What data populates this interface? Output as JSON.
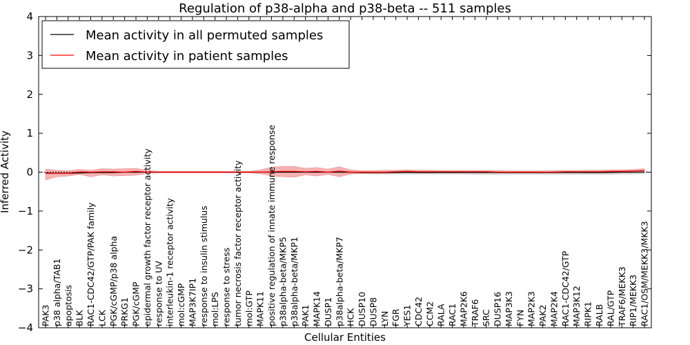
{
  "chart_data": {
    "type": "line",
    "title": "Regulation of p38-alpha and p38-beta -- 511 samples",
    "xlabel": "Cellular Entities",
    "ylabel": "Inferred Activity",
    "ylim": [
      -4,
      4
    ],
    "yticks": [
      -4,
      -3,
      -2,
      -1,
      0,
      1,
      2,
      3,
      4
    ],
    "ytick_labels": [
      "−4",
      "−3",
      "−2",
      "−1",
      "0",
      "1",
      "2",
      "3",
      "4"
    ],
    "legend_position": "top-left",
    "categories": [
      "PAK3",
      "p38 alpha/TAB1",
      "apoptosis",
      "BLK",
      "RAC1-CDC42/GTP/PAK family",
      "LCK",
      "PGK/cGMP/p38 alpha",
      "PRKG1",
      "PGK/cGMP",
      "epidermal growth factor receptor activity",
      "response to UV",
      "interleukin-1 receptor activity",
      "mol:cGMP",
      "MAP3K7IP1",
      "response to insulin stimulus",
      "mol:LPS",
      "response to stress",
      "tumor necrosis factor receptor activity",
      "mol:GTP",
      "MAPK11",
      "positive regulation of innate immune response",
      "p38alpha-beta/MKP5",
      "p38alpha-beta/MKP1",
      "PAK1",
      "MAPK14",
      "DUSP1",
      "p38alpha-beta/MKP7",
      "HCK",
      "DUSP10",
      "DUSP8",
      "LYN",
      "FGR",
      "YES1",
      "CDC42",
      "CCM2",
      "RALA",
      "RAC1",
      "MAP2K6",
      "TRAF6",
      "SRC",
      "DUSP16",
      "MAP3K3",
      "FYN",
      "MAP2K3",
      "PAK2",
      "MAP2K4",
      "RAC1-CDC42/GTP",
      "MAP3K12",
      "RIPK1",
      "RALB",
      "RAL/GTP",
      "TRAF6/MEKK3",
      "RIP1/MEKK3",
      "RAC1/OSM/MEKK3/MKK3"
    ],
    "series": [
      {
        "name": "Mean activity in all permuted samples",
        "color": "#000000",
        "band_color": "#bdbdbd",
        "values": [
          -0.03,
          -0.03,
          -0.03,
          -0.02,
          -0.01,
          -0.01,
          -0.01,
          0.0,
          0.0,
          0.0,
          0.0,
          0.0,
          0.0,
          0.0,
          0.0,
          0.0,
          0.0,
          0.0,
          0.0,
          0.0,
          0.0,
          0.0,
          0.0,
          0.0,
          0.0,
          0.0,
          0.0,
          0.0,
          -0.01,
          -0.01,
          -0.01,
          -0.01,
          -0.01,
          -0.01,
          -0.01,
          -0.01,
          -0.01,
          -0.01,
          -0.01,
          -0.01,
          -0.01,
          -0.01,
          -0.01,
          -0.01,
          -0.01,
          -0.01,
          -0.01,
          -0.01,
          -0.01,
          -0.01,
          -0.01,
          0.0,
          0.0,
          0.0
        ],
        "lower": [
          -0.05,
          -0.05,
          -0.05,
          -0.04,
          -0.03,
          -0.03,
          -0.03,
          -0.02,
          -0.02,
          -0.01,
          -0.01,
          -0.01,
          -0.01,
          -0.01,
          -0.01,
          -0.01,
          -0.01,
          -0.01,
          -0.01,
          -0.01,
          -0.01,
          -0.01,
          -0.01,
          -0.01,
          -0.01,
          -0.01,
          -0.02,
          -0.03,
          -0.04,
          -0.05,
          -0.05,
          -0.05,
          -0.05,
          -0.05,
          -0.05,
          -0.05,
          -0.05,
          -0.05,
          -0.06,
          -0.06,
          -0.06,
          -0.06,
          -0.06,
          -0.06,
          -0.06,
          -0.06,
          -0.06,
          -0.06,
          -0.06,
          -0.06,
          -0.06,
          -0.05,
          -0.05,
          -0.04
        ],
        "upper": [
          0.0,
          0.0,
          0.0,
          0.0,
          0.01,
          0.01,
          0.01,
          0.01,
          0.01,
          0.01,
          0.01,
          0.01,
          0.01,
          0.01,
          0.01,
          0.01,
          0.01,
          0.01,
          0.01,
          0.01,
          0.01,
          0.01,
          0.01,
          0.01,
          0.01,
          0.01,
          0.01,
          0.02,
          0.02,
          0.02,
          0.02,
          0.03,
          0.03,
          0.03,
          0.03,
          0.03,
          0.03,
          0.03,
          0.03,
          0.03,
          0.03,
          0.03,
          0.03,
          0.03,
          0.03,
          0.03,
          0.03,
          0.03,
          0.03,
          0.03,
          0.03,
          0.03,
          0.03,
          0.04
        ]
      },
      {
        "name": "Mean activity in patient samples",
        "color": "#ff0000",
        "band_color": "#f08080",
        "values": [
          -0.02,
          -0.03,
          -0.03,
          0.01,
          0.0,
          0.01,
          0.01,
          0.0,
          0.02,
          0.0,
          0.0,
          0.0,
          0.0,
          0.0,
          0.0,
          0.0,
          0.0,
          0.0,
          0.0,
          0.0,
          0.01,
          0.02,
          0.02,
          0.01,
          0.02,
          0.0,
          0.03,
          0.0,
          0.0,
          0.0,
          0.0,
          0.01,
          0.02,
          0.01,
          0.01,
          0.01,
          0.01,
          0.01,
          0.01,
          0.01,
          0.0,
          0.0,
          0.0,
          0.0,
          0.0,
          0.0,
          0.01,
          0.01,
          0.01,
          0.01,
          0.02,
          0.02,
          0.03,
          0.04
        ],
        "lower": [
          -0.2,
          -0.12,
          -0.1,
          -0.06,
          -0.12,
          -0.07,
          -0.1,
          -0.09,
          -0.08,
          -0.03,
          -0.02,
          -0.02,
          -0.02,
          -0.02,
          -0.02,
          -0.02,
          -0.02,
          -0.02,
          -0.02,
          -0.04,
          -0.1,
          -0.12,
          -0.13,
          -0.07,
          -0.1,
          -0.06,
          -0.12,
          -0.05,
          -0.03,
          -0.03,
          -0.03,
          -0.02,
          -0.01,
          -0.02,
          -0.02,
          -0.01,
          -0.02,
          -0.01,
          -0.01,
          -0.01,
          -0.02,
          -0.02,
          -0.02,
          -0.02,
          -0.02,
          -0.02,
          -0.01,
          -0.01,
          -0.02,
          -0.02,
          -0.01,
          -0.01,
          -0.01,
          0.0
        ],
        "upper": [
          0.08,
          0.05,
          0.04,
          0.07,
          0.05,
          0.09,
          0.08,
          0.09,
          0.1,
          0.05,
          0.02,
          0.02,
          0.02,
          0.02,
          0.02,
          0.02,
          0.02,
          0.02,
          0.02,
          0.06,
          0.13,
          0.15,
          0.15,
          0.1,
          0.12,
          0.08,
          0.14,
          0.06,
          0.04,
          0.04,
          0.05,
          0.05,
          0.06,
          0.05,
          0.05,
          0.04,
          0.04,
          0.04,
          0.04,
          0.04,
          0.04,
          0.03,
          0.03,
          0.03,
          0.03,
          0.04,
          0.04,
          0.04,
          0.05,
          0.05,
          0.06,
          0.06,
          0.07,
          0.09
        ]
      }
    ]
  }
}
